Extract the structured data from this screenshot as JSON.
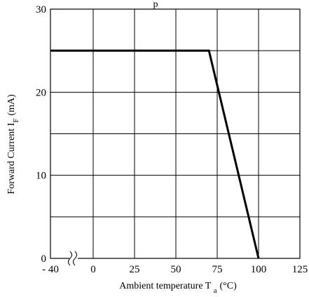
{
  "chart_data": {
    "type": "line",
    "title": "",
    "title_fragment": "p",
    "xlabel": "Ambient temperature T",
    "xlabel_sub": "a",
    "xlabel_unit": "(°C)",
    "ylabel": "Forward Current I",
    "ylabel_sub": "F",
    "ylabel_unit": "(mA)",
    "x_tick_labels": [
      "- 40",
      "0",
      "25",
      "50",
      "75",
      "100",
      "125"
    ],
    "x_ticks": [
      -40,
      0,
      25,
      50,
      75,
      100,
      125
    ],
    "y_ticks": [
      0,
      10,
      20,
      30
    ],
    "y_tick_labels": [
      "0",
      "10",
      "20",
      "30"
    ],
    "xlim": [
      -40,
      125
    ],
    "ylim": [
      0,
      30
    ],
    "x_axis_break": true,
    "grid": true,
    "grid_y_step": 5,
    "series": [
      {
        "x": [
          -40,
          70,
          100
        ],
        "y": [
          25,
          25,
          0
        ]
      }
    ]
  }
}
